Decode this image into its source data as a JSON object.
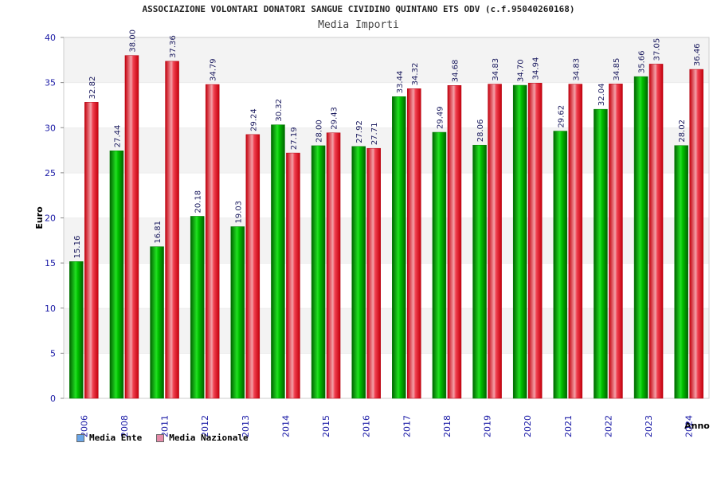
{
  "chart_data": {
    "type": "bar",
    "title": "ASSOCIAZIONE VOLONTARI DONATORI SANGUE CIVIDINO QUINTANO ETS ODV (c.f.95040260168)",
    "subtitle": "Media Importi",
    "xlabel": "Anno",
    "ylabel": "Euro",
    "ylim": [
      0,
      40
    ],
    "yticks": [
      "0",
      "5",
      "10",
      "15",
      "20",
      "25",
      "30",
      "35",
      "40"
    ],
    "categories": [
      "2006",
      "2008",
      "2011",
      "2012",
      "2013",
      "2014",
      "2015",
      "2016",
      "2017",
      "2018",
      "2019",
      "2020",
      "2021",
      "2022",
      "2023",
      "2024"
    ],
    "series": [
      {
        "name": "Media Ente",
        "color": "#00b400",
        "legend_color": "#6aa6e8",
        "values": [
          15.16,
          27.44,
          16.81,
          20.18,
          19.03,
          30.32,
          28.0,
          27.92,
          33.44,
          29.49,
          28.06,
          34.7,
          29.62,
          32.04,
          35.66,
          28.02
        ],
        "labels": [
          "15.16",
          "27.44",
          "16.81",
          "20.18",
          "19.03",
          "30.32",
          "28.00",
          "27.92",
          "33.44",
          "29.49",
          "28.06",
          "34.70",
          "29.62",
          "32.04",
          "35.66",
          "28.02"
        ]
      },
      {
        "name": "Media Nazionale",
        "color": "#e8202a",
        "legend_color": "#e58aa8",
        "values": [
          32.82,
          38.0,
          37.36,
          34.79,
          29.24,
          27.19,
          29.43,
          27.71,
          34.32,
          34.68,
          34.83,
          34.94,
          34.83,
          34.85,
          37.05,
          36.46
        ],
        "labels": [
          "32.82",
          "38.00",
          "37.36",
          "34.79",
          "29.24",
          "27.19",
          "29.43",
          "27.71",
          "34.32",
          "34.68",
          "34.83",
          "34.94",
          "34.83",
          "34.85",
          "37.05",
          "36.46"
        ]
      }
    ]
  }
}
